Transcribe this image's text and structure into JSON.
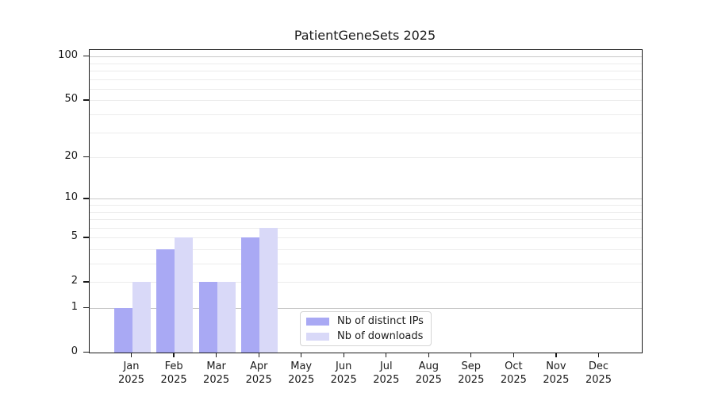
{
  "chart_data": {
    "type": "bar",
    "title": "PatientGeneSets 2025",
    "categories": [
      "Jan",
      "Feb",
      "Mar",
      "Apr",
      "May",
      "Jun",
      "Jul",
      "Aug",
      "Sep",
      "Oct",
      "Nov",
      "Dec"
    ],
    "x_year": "2025",
    "series": [
      {
        "name": "Nb of distinct IPs",
        "color": "#a9a9f4",
        "values": [
          1,
          4,
          2,
          5,
          0,
          0,
          0,
          0,
          0,
          0,
          0,
          0
        ]
      },
      {
        "name": "Nb of downloads",
        "color": "#d9d9f8",
        "values": [
          2,
          5,
          2,
          6,
          0,
          0,
          0,
          0,
          0,
          0,
          0,
          0
        ]
      }
    ],
    "y_axis": {
      "scale": "symlog-ln(1+y)",
      "tick_values": [
        0,
        1,
        2,
        5,
        10,
        20,
        50,
        100
      ],
      "tick_labels": [
        "0",
        "1",
        "2",
        "5",
        "10",
        "20",
        "50",
        "100"
      ],
      "minor_grid_values": [
        3,
        4,
        6,
        7,
        8,
        9,
        30,
        40,
        60,
        70,
        80,
        90
      ],
      "major_grid_values": [
        1,
        10,
        100
      ]
    },
    "grid": true,
    "legend_position": "lower center",
    "colors": {
      "grid_minor": "#ececec",
      "grid_major": "#c8c8c8",
      "axis": "#1a1a1a",
      "text": "#1a1a1a"
    }
  }
}
